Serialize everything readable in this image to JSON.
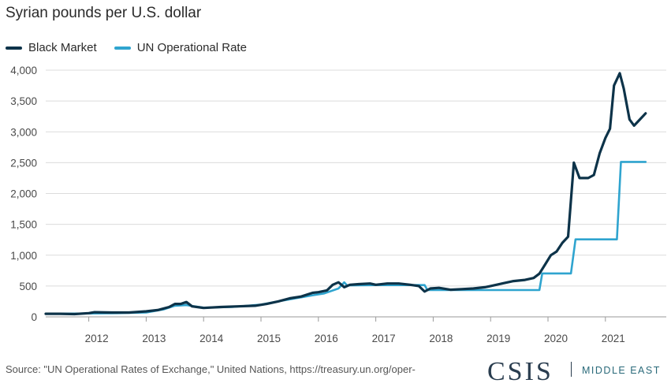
{
  "chart_data": {
    "type": "line",
    "title": "Syrian pounds per U.S. dollar",
    "xlabel": "",
    "ylabel": "",
    "ylim": [
      0,
      4000
    ],
    "xlim": [
      2011.25,
      2021.75
    ],
    "y_ticks": [
      "0",
      "500",
      "1,000",
      "1,500",
      "2,000",
      "2,500",
      "3,000",
      "3,500",
      "4,000"
    ],
    "x_ticks": [
      "2012",
      "2013",
      "2014",
      "2015",
      "2016",
      "2017",
      "2018",
      "2019",
      "2020",
      "2021"
    ],
    "legend_position": "top-left",
    "grid": "horizontal",
    "series": [
      {
        "name": "Black Market",
        "color": "#0d3349",
        "x": [
          2011.25,
          2011.5,
          2011.75,
          2012.0,
          2012.1,
          2012.4,
          2012.7,
          2013.0,
          2013.2,
          2013.4,
          2013.5,
          2013.6,
          2013.7,
          2013.8,
          2014.0,
          2014.3,
          2014.6,
          2014.9,
          2015.1,
          2015.3,
          2015.5,
          2015.7,
          2015.9,
          2016.0,
          2016.15,
          2016.25,
          2016.35,
          2016.45,
          2016.55,
          2016.7,
          2016.9,
          2017.0,
          2017.2,
          2017.4,
          2017.6,
          2017.75,
          2017.85,
          2017.95,
          2018.1,
          2018.3,
          2018.5,
          2018.7,
          2018.9,
          2019.0,
          2019.2,
          2019.4,
          2019.6,
          2019.75,
          2019.85,
          2019.95,
          2020.05,
          2020.15,
          2020.25,
          2020.35,
          2020.45,
          2020.55,
          2020.7,
          2020.8,
          2020.9,
          2021.0,
          2021.08,
          2021.15,
          2021.25,
          2021.32,
          2021.42,
          2021.5,
          2021.6,
          2021.7
        ],
        "values": [
          50,
          50,
          45,
          60,
          75,
          70,
          70,
          90,
          110,
          160,
          210,
          210,
          240,
          170,
          145,
          160,
          170,
          180,
          210,
          250,
          300,
          330,
          390,
          400,
          430,
          520,
          560,
          480,
          520,
          530,
          540,
          520,
          540,
          540,
          520,
          500,
          410,
          460,
          470,
          440,
          450,
          460,
          480,
          500,
          540,
          580,
          600,
          630,
          700,
          850,
          1000,
          1060,
          1200,
          1300,
          2500,
          2250,
          2250,
          2300,
          2650,
          2900,
          3050,
          3750,
          3950,
          3700,
          3200,
          3100,
          3200,
          3300
        ]
      },
      {
        "name": "UN Operational Rate",
        "color": "#2fa4cf",
        "x": [
          2011.25,
          2012.0,
          2012.5,
          2013.0,
          2013.3,
          2013.5,
          2013.7,
          2014.0,
          2014.5,
          2015.0,
          2015.3,
          2015.6,
          2015.9,
          2016.1,
          2016.35,
          2016.45,
          2016.5,
          2017.0,
          2017.5,
          2017.85,
          2017.9,
          2019.0,
          2019.85,
          2019.9,
          2020.4,
          2020.48,
          2021.2,
          2021.27,
          2021.7
        ],
        "values": [
          48,
          55,
          60,
          70,
          120,
          180,
          190,
          150,
          160,
          200,
          250,
          300,
          350,
          380,
          460,
          560,
          510,
          515,
          515,
          515,
          434,
          434,
          434,
          704,
          704,
          1256,
          1256,
          2512,
          2512
        ]
      }
    ]
  },
  "source_text": "Source: \"UN Operational Rates of Exchange,\" United Nations, https://treasury.un.org/oper-",
  "logo": {
    "text": "CSIS",
    "subtitle": "MIDDLE EAST"
  }
}
